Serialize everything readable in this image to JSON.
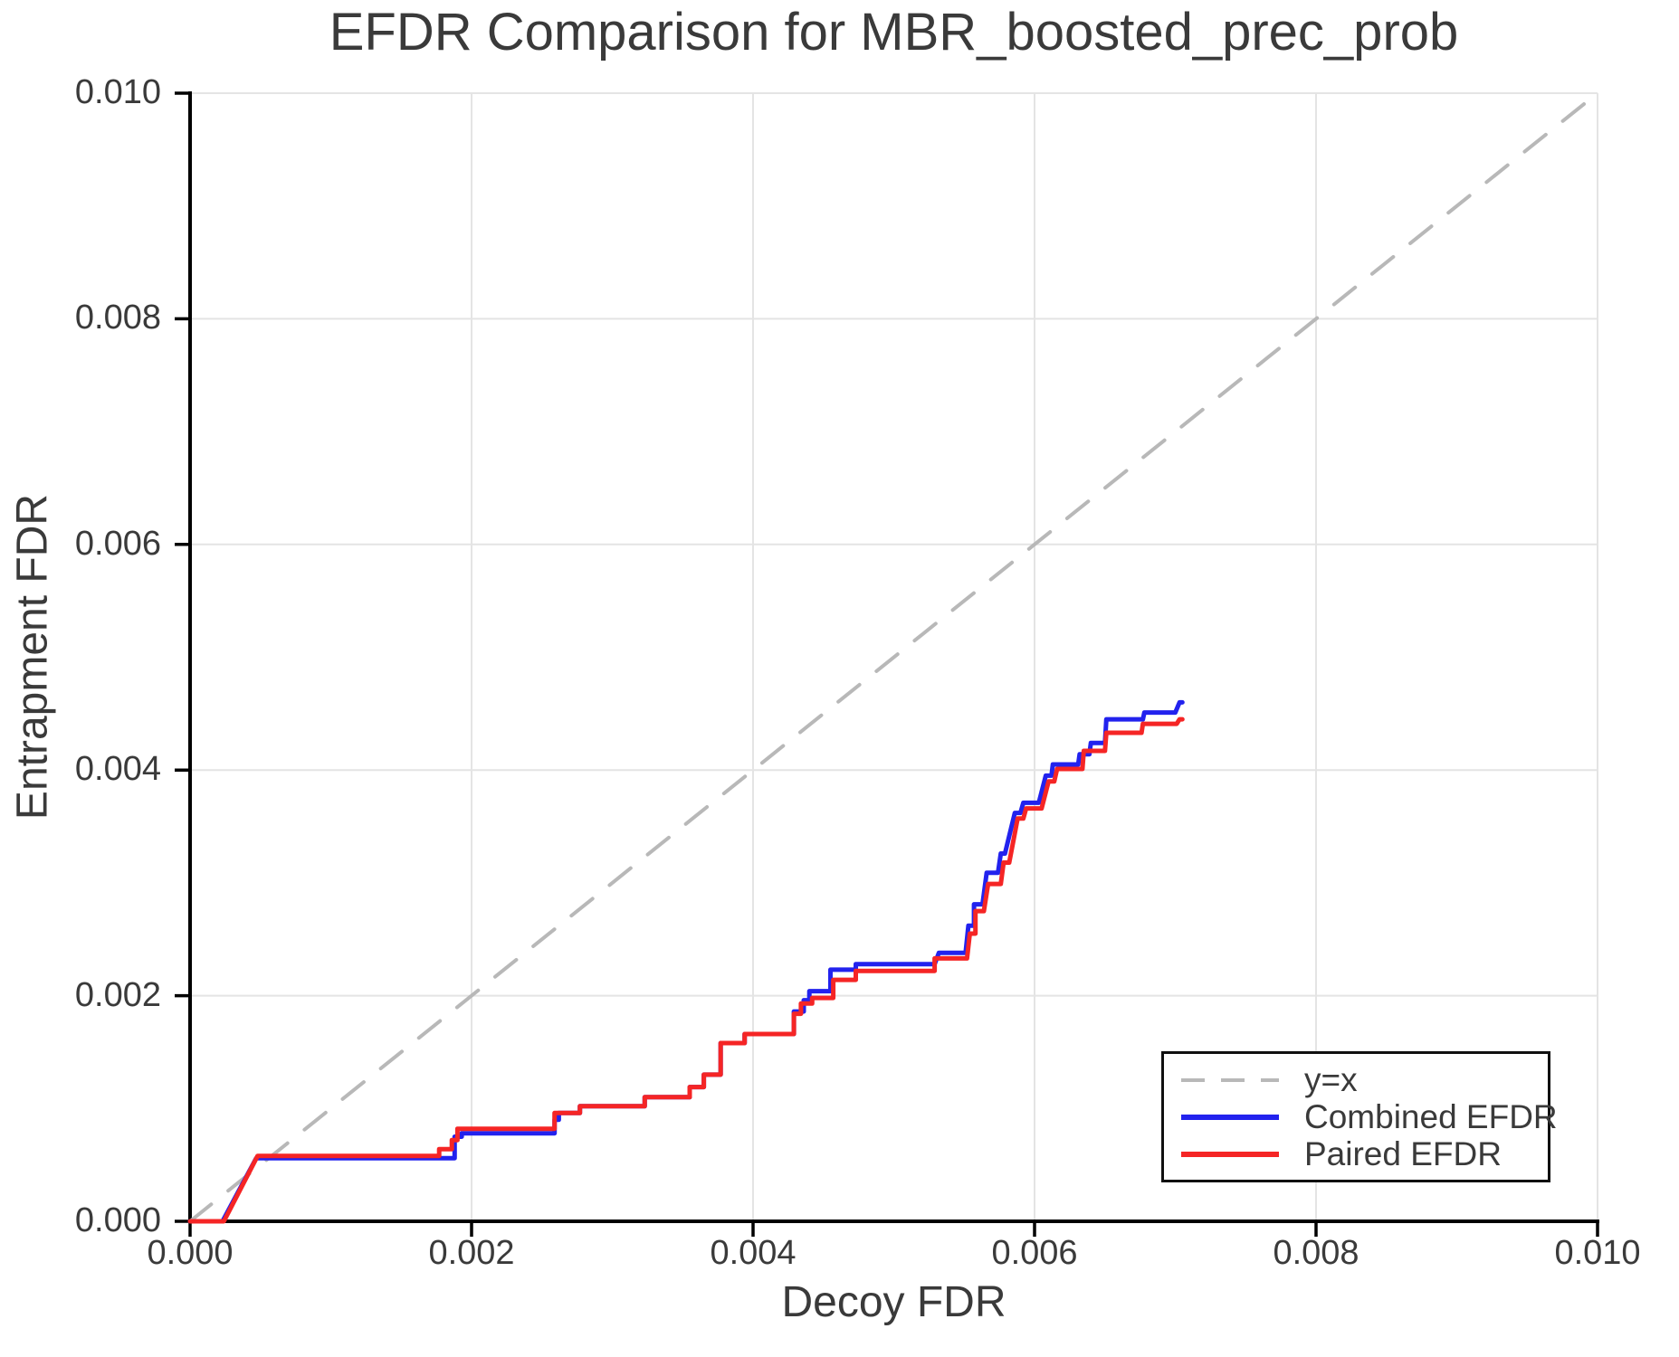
{
  "chart_data": {
    "type": "line",
    "title": "EFDR Comparison for MBR_boosted_prec_prob",
    "xlabel": "Decoy FDR",
    "ylabel": "Entrapment FDR",
    "xlim": [
      0.0,
      0.01
    ],
    "ylim": [
      0.0,
      0.01
    ],
    "x_ticks": [
      0.0,
      0.002,
      0.004,
      0.006,
      0.008,
      0.01
    ],
    "x_tick_labels": [
      "0.000",
      "0.002",
      "0.004",
      "0.006",
      "0.008",
      "0.010"
    ],
    "y_ticks": [
      0.0,
      0.002,
      0.004,
      0.006,
      0.008,
      0.01
    ],
    "y_tick_labels": [
      "0.000",
      "0.002",
      "0.004",
      "0.006",
      "0.008",
      "0.010"
    ],
    "grid": true,
    "colors": {
      "grid": "#e4e4e4",
      "spine": "#000000",
      "text": "#3a3a3a",
      "reference": "#b8b8b8",
      "combined": "#2222ee",
      "paired": "#f52525",
      "background": "#ffffff"
    },
    "legend": {
      "position": "lower right",
      "entries": [
        {
          "label": "y=x"
        },
        {
          "label": "Combined EFDR"
        },
        {
          "label": "Paired EFDR"
        }
      ]
    },
    "series": [
      {
        "name": "y=x",
        "style": "dashed",
        "color": "#b8b8b8",
        "width": 4,
        "points": [
          [
            0.0,
            0.0
          ],
          [
            0.01,
            0.01
          ]
        ]
      },
      {
        "name": "Combined EFDR",
        "style": "solid",
        "color": "#2222ee",
        "width": 5,
        "points": [
          [
            0.0,
            0.0
          ],
          [
            0.00023,
            0.0
          ],
          [
            0.00047,
            0.00056
          ],
          [
            0.00188,
            0.00056
          ],
          [
            0.00188,
            0.00075
          ],
          [
            0.00193,
            0.00075
          ],
          [
            0.00193,
            0.00078
          ],
          [
            0.00259,
            0.00078
          ],
          [
            0.00259,
            0.0009
          ],
          [
            0.00262,
            0.0009
          ],
          [
            0.00262,
            0.00096
          ],
          [
            0.00277,
            0.00096
          ],
          [
            0.00277,
            0.00102
          ],
          [
            0.00323,
            0.00102
          ],
          [
            0.00323,
            0.0011
          ],
          [
            0.00355,
            0.0011
          ],
          [
            0.00355,
            0.00119
          ],
          [
            0.00365,
            0.00119
          ],
          [
            0.00365,
            0.0013
          ],
          [
            0.00377,
            0.0013
          ],
          [
            0.00377,
            0.00158
          ],
          [
            0.00394,
            0.00158
          ],
          [
            0.00394,
            0.00166
          ],
          [
            0.00429,
            0.00166
          ],
          [
            0.00429,
            0.00186
          ],
          [
            0.00436,
            0.00186
          ],
          [
            0.00436,
            0.00196
          ],
          [
            0.0044,
            0.00196
          ],
          [
            0.0044,
            0.00204
          ],
          [
            0.00455,
            0.00204
          ],
          [
            0.00455,
            0.00223
          ],
          [
            0.00473,
            0.00223
          ],
          [
            0.00473,
            0.00228
          ],
          [
            0.00529,
            0.00228
          ],
          [
            0.00532,
            0.00238
          ],
          [
            0.00551,
            0.00238
          ],
          [
            0.00553,
            0.00262
          ],
          [
            0.00557,
            0.00262
          ],
          [
            0.00557,
            0.00281
          ],
          [
            0.00563,
            0.00281
          ],
          [
            0.00566,
            0.00309
          ],
          [
            0.00574,
            0.00309
          ],
          [
            0.00576,
            0.00326
          ],
          [
            0.00579,
            0.00326
          ],
          [
            0.00586,
            0.00362
          ],
          [
            0.0059,
            0.00362
          ],
          [
            0.00592,
            0.00371
          ],
          [
            0.00603,
            0.00371
          ],
          [
            0.00608,
            0.00395
          ],
          [
            0.00612,
            0.00395
          ],
          [
            0.00613,
            0.00405
          ],
          [
            0.00631,
            0.00405
          ],
          [
            0.00632,
            0.00414
          ],
          [
            0.00639,
            0.00414
          ],
          [
            0.0064,
            0.00424
          ],
          [
            0.0065,
            0.00424
          ],
          [
            0.00651,
            0.00445
          ],
          [
            0.00677,
            0.00445
          ],
          [
            0.00678,
            0.00451
          ],
          [
            0.007,
            0.00451
          ],
          [
            0.00703,
            0.0046
          ],
          [
            0.00705,
            0.0046
          ]
        ]
      },
      {
        "name": "Paired EFDR",
        "style": "solid",
        "color": "#f52525",
        "width": 5,
        "points": [
          [
            0.0,
            0.0
          ],
          [
            0.00024,
            0.0
          ],
          [
            0.00048,
            0.00058
          ],
          [
            0.00177,
            0.00058
          ],
          [
            0.00177,
            0.00064
          ],
          [
            0.00186,
            0.00064
          ],
          [
            0.00186,
            0.00072
          ],
          [
            0.0019,
            0.00072
          ],
          [
            0.0019,
            0.00082
          ],
          [
            0.00259,
            0.00082
          ],
          [
            0.00259,
            0.00096
          ],
          [
            0.00277,
            0.00096
          ],
          [
            0.00277,
            0.00102
          ],
          [
            0.00323,
            0.00102
          ],
          [
            0.00323,
            0.0011
          ],
          [
            0.00355,
            0.0011
          ],
          [
            0.00355,
            0.00119
          ],
          [
            0.00365,
            0.00119
          ],
          [
            0.00365,
            0.0013
          ],
          [
            0.00377,
            0.0013
          ],
          [
            0.00377,
            0.00158
          ],
          [
            0.00394,
            0.00158
          ],
          [
            0.00394,
            0.00166
          ],
          [
            0.00429,
            0.00166
          ],
          [
            0.00429,
            0.00184
          ],
          [
            0.00434,
            0.00184
          ],
          [
            0.00434,
            0.00193
          ],
          [
            0.00442,
            0.00193
          ],
          [
            0.00442,
            0.00198
          ],
          [
            0.00457,
            0.00198
          ],
          [
            0.00457,
            0.00214
          ],
          [
            0.00473,
            0.00214
          ],
          [
            0.00473,
            0.00222
          ],
          [
            0.00529,
            0.00222
          ],
          [
            0.00529,
            0.00233
          ],
          [
            0.00552,
            0.00233
          ],
          [
            0.00554,
            0.00255
          ],
          [
            0.00558,
            0.00255
          ],
          [
            0.00558,
            0.00275
          ],
          [
            0.00564,
            0.00275
          ],
          [
            0.00567,
            0.00299
          ],
          [
            0.00576,
            0.00299
          ],
          [
            0.00578,
            0.00318
          ],
          [
            0.00582,
            0.00318
          ],
          [
            0.00588,
            0.00357
          ],
          [
            0.00592,
            0.00357
          ],
          [
            0.00594,
            0.00366
          ],
          [
            0.00605,
            0.00366
          ],
          [
            0.0061,
            0.0039
          ],
          [
            0.00614,
            0.0039
          ],
          [
            0.00616,
            0.00401
          ],
          [
            0.00634,
            0.00401
          ],
          [
            0.00635,
            0.00417
          ],
          [
            0.0065,
            0.00417
          ],
          [
            0.00651,
            0.00433
          ],
          [
            0.00676,
            0.00433
          ],
          [
            0.00677,
            0.00441
          ],
          [
            0.00701,
            0.00441
          ],
          [
            0.00703,
            0.00445
          ],
          [
            0.00705,
            0.00445
          ]
        ]
      }
    ]
  }
}
